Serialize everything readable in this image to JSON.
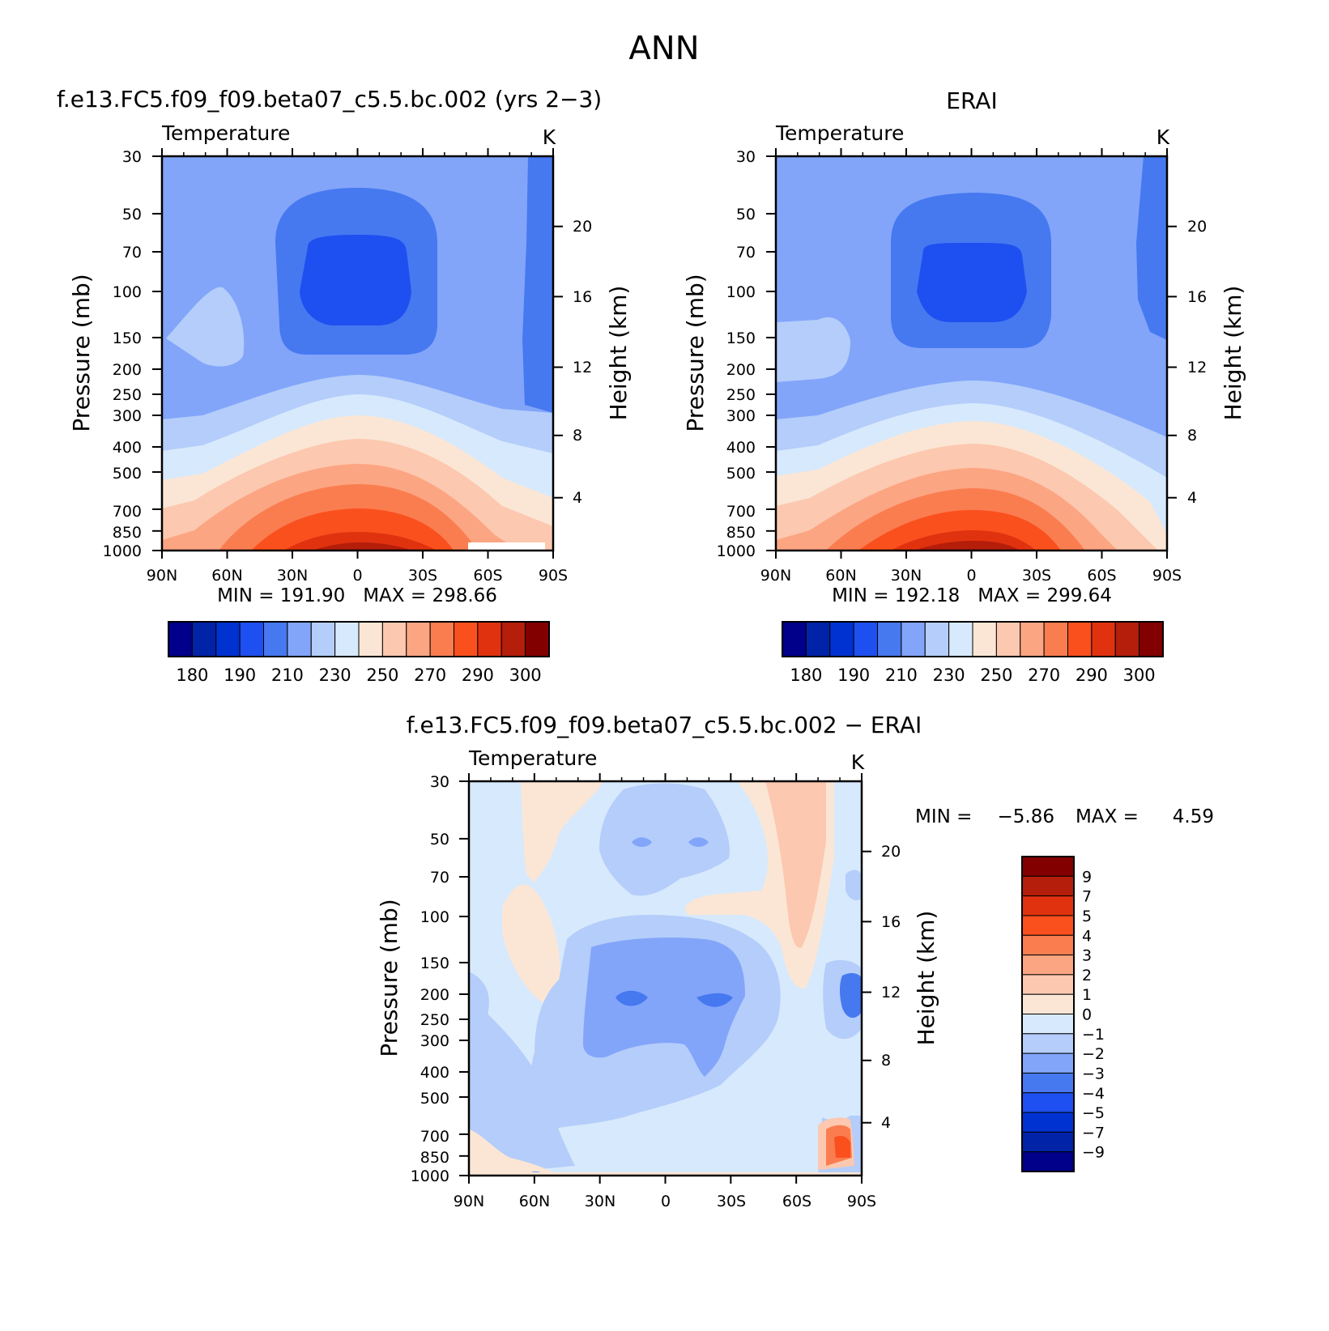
{
  "page_title": "ANN",
  "chart_data": [
    {
      "type": "heatmap",
      "title": "f.e13.FC5.f09_f09.beta07_c5.5.bc.002 (yrs 2−3)",
      "left_string": "Temperature",
      "right_string": "K",
      "xlabel": "",
      "ylabel": "Pressure (mb)",
      "y2label": "Height (km)",
      "xticks": [
        "90N",
        "60N",
        "30N",
        "0",
        "30S",
        "60S",
        "90S"
      ],
      "yticks": [
        "30",
        "50",
        "70",
        "100",
        "150",
        "200",
        "250",
        "300",
        "400",
        "500",
        "700",
        "850",
        "1000"
      ],
      "y2ticks": [
        "20",
        "16",
        "12",
        "8",
        "4"
      ],
      "stats": "MIN = 191.90   MAX = 298.66",
      "min": 191.9,
      "max": 298.66,
      "colorbar_labels": [
        "180",
        "190",
        "210",
        "230",
        "250",
        "270",
        "290",
        "300"
      ],
      "colorbar_colors": [
        "#00008b",
        "#0023a8",
        "#0032d2",
        "#1e4ff0",
        "#4678f0",
        "#82a5fa",
        "#b4cdfa",
        "#d7e9fc",
        "#fbe6d5",
        "#fcc8af",
        "#fca582",
        "#fa7d50",
        "#fa501e",
        "#e1320f",
        "#b41e0a",
        "#820000"
      ]
    },
    {
      "type": "heatmap",
      "title": "ERAI",
      "left_string": "Temperature",
      "right_string": "K",
      "xlabel": "",
      "ylabel": "Pressure (mb)",
      "y2label": "Height (km)",
      "xticks": [
        "90N",
        "60N",
        "30N",
        "0",
        "30S",
        "60S",
        "90S"
      ],
      "yticks": [
        "30",
        "50",
        "70",
        "100",
        "150",
        "200",
        "250",
        "300",
        "400",
        "500",
        "700",
        "850",
        "1000"
      ],
      "y2ticks": [
        "20",
        "16",
        "12",
        "8",
        "4"
      ],
      "stats": "MIN = 192.18   MAX = 299.64",
      "min": 192.18,
      "max": 299.64,
      "colorbar_labels": [
        "180",
        "190",
        "210",
        "230",
        "250",
        "270",
        "290",
        "300"
      ],
      "colorbar_colors": [
        "#00008b",
        "#0023a8",
        "#0032d2",
        "#1e4ff0",
        "#4678f0",
        "#82a5fa",
        "#b4cdfa",
        "#d7e9fc",
        "#fbe6d5",
        "#fcc8af",
        "#fca582",
        "#fa7d50",
        "#fa501e",
        "#e1320f",
        "#b41e0a",
        "#820000"
      ]
    },
    {
      "type": "heatmap",
      "title": "f.e13.FC5.f09_f09.beta07_c5.5.bc.002 − ERAI",
      "left_string": "Temperature",
      "right_string": "K",
      "xlabel": "",
      "ylabel": "Pressure (mb)",
      "y2label": "Height (km)",
      "xticks": [
        "90N",
        "60N",
        "30N",
        "0",
        "30S",
        "60S",
        "90S"
      ],
      "yticks": [
        "30",
        "50",
        "70",
        "100",
        "150",
        "200",
        "250",
        "300",
        "400",
        "500",
        "700",
        "850",
        "1000"
      ],
      "y2ticks": [
        "20",
        "16",
        "12",
        "8",
        "4"
      ],
      "stats_min_label": "MIN =",
      "stats_min_value": "−5.86",
      "stats_max_label": "MAX =",
      "stats_max_value": "4.59",
      "min": -5.86,
      "max": 4.59,
      "colorbar_labels": [
        "9",
        "7",
        "5",
        "4",
        "3",
        "2",
        "1",
        "0",
        "−1",
        "−2",
        "−3",
        "−4",
        "−5",
        "−7",
        "−9"
      ],
      "colorbar_colors": [
        "#820000",
        "#b41e0a",
        "#e1320f",
        "#fa501e",
        "#fa7d50",
        "#fca582",
        "#fcc8af",
        "#fbe6d5",
        "#d7e9fc",
        "#b4cdfa",
        "#82a5fa",
        "#4678f0",
        "#1e4ff0",
        "#0032d2",
        "#0023a8",
        "#00008b"
      ]
    }
  ]
}
